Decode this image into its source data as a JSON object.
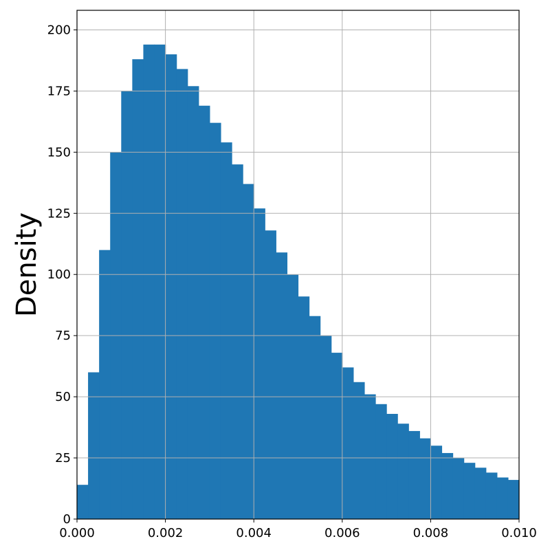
{
  "chart_data": {
    "type": "bar",
    "title": "",
    "xlabel": "",
    "ylabel": "Density",
    "xlim": [
      0.0,
      0.01
    ],
    "ylim": [
      0,
      208
    ],
    "grid": true,
    "legend": "none",
    "x_ticks": [
      0.0,
      0.002,
      0.004,
      0.006,
      0.008,
      0.01
    ],
    "x_tick_labels": [
      "0.000",
      "0.002",
      "0.004",
      "0.006",
      "0.008",
      "0.010"
    ],
    "y_ticks": [
      0,
      25,
      50,
      75,
      100,
      125,
      150,
      175,
      200
    ],
    "y_tick_labels": [
      "0",
      "25",
      "50",
      "75",
      "100",
      "125",
      "150",
      "175",
      "200"
    ],
    "bar_color": "#1f77b4",
    "bin_width": 0.00025,
    "bins": [
      {
        "x": 0.000125,
        "value": 14
      },
      {
        "x": 0.000375,
        "value": 60
      },
      {
        "x": 0.000625,
        "value": 110
      },
      {
        "x": 0.000875,
        "value": 150
      },
      {
        "x": 0.001125,
        "value": 175
      },
      {
        "x": 0.001375,
        "value": 188
      },
      {
        "x": 0.001625,
        "value": 194
      },
      {
        "x": 0.001875,
        "value": 194
      },
      {
        "x": 0.002125,
        "value": 190
      },
      {
        "x": 0.002375,
        "value": 184
      },
      {
        "x": 0.002625,
        "value": 177
      },
      {
        "x": 0.002875,
        "value": 169
      },
      {
        "x": 0.003125,
        "value": 162
      },
      {
        "x": 0.003375,
        "value": 154
      },
      {
        "x": 0.003625,
        "value": 145
      },
      {
        "x": 0.003875,
        "value": 137
      },
      {
        "x": 0.004125,
        "value": 127
      },
      {
        "x": 0.004375,
        "value": 118
      },
      {
        "x": 0.004625,
        "value": 109
      },
      {
        "x": 0.004875,
        "value": 100
      },
      {
        "x": 0.005125,
        "value": 91
      },
      {
        "x": 0.005375,
        "value": 83
      },
      {
        "x": 0.005625,
        "value": 75
      },
      {
        "x": 0.005875,
        "value": 68
      },
      {
        "x": 0.006125,
        "value": 62
      },
      {
        "x": 0.006375,
        "value": 56
      },
      {
        "x": 0.006625,
        "value": 51
      },
      {
        "x": 0.006875,
        "value": 47
      },
      {
        "x": 0.007125,
        "value": 43
      },
      {
        "x": 0.007375,
        "value": 39
      },
      {
        "x": 0.007625,
        "value": 36
      },
      {
        "x": 0.007875,
        "value": 33
      },
      {
        "x": 0.008125,
        "value": 30
      },
      {
        "x": 0.008375,
        "value": 27
      },
      {
        "x": 0.008625,
        "value": 25
      },
      {
        "x": 0.008875,
        "value": 23
      },
      {
        "x": 0.009125,
        "value": 21
      },
      {
        "x": 0.009375,
        "value": 19
      },
      {
        "x": 0.009625,
        "value": 17
      },
      {
        "x": 0.009875,
        "value": 16
      }
    ]
  }
}
